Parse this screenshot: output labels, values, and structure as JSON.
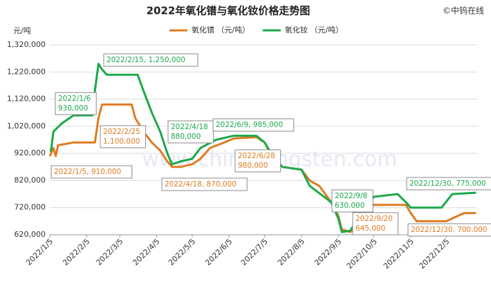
{
  "chart_data": {
    "type": "line",
    "title": "2022年氧化镨与氧化钕价格走势图",
    "source": "©中钨在线",
    "watermark": "www.chinatungsten.com",
    "y_label": "元/吨",
    "xlim": [
      "2022/1/5",
      "2022/12/31"
    ],
    "xticks": [
      "2022/1/5",
      "2022/2/5",
      "2022/3/5",
      "2022/4/5",
      "2022/5/5",
      "2022/6/5",
      "2022/7/5",
      "2022/8/5",
      "2022/9/5",
      "2022/10/5",
      "2022/11/5",
      "2022/12/5"
    ],
    "ylim": [
      620000,
      1320000
    ],
    "yticks": [
      {
        "value": 620000,
        "label": "620,000"
      },
      {
        "value": 720000,
        "label": "720,000"
      },
      {
        "value": 820000,
        "label": "820,000"
      },
      {
        "value": 920000,
        "label": "920,000"
      },
      {
        "value": 1020000,
        "label": "1,020,000"
      },
      {
        "value": 1120000,
        "label": "1,120,000"
      },
      {
        "value": 1220000,
        "label": "1,220,000"
      },
      {
        "value": 1320000,
        "label": "1,320,000"
      }
    ],
    "grid": true,
    "series": [
      {
        "name": "氧化镨 （元/吨）",
        "color": "#e07b20",
        "x": [
          "2022/1/5",
          "2022/1/8",
          "2022/1/10",
          "2022/1/12",
          "2022/1/25",
          "2022/2/12",
          "2022/2/15",
          "2022/2/18",
          "2022/3/15",
          "2022/3/18",
          "2022/3/25",
          "2022/4/1",
          "2022/4/8",
          "2022/4/14",
          "2022/4/18",
          "2022/4/25",
          "2022/5/5",
          "2022/5/12",
          "2022/5/20",
          "2022/6/1",
          "2022/6/9",
          "2022/6/28",
          "2022/7/5",
          "2022/7/12",
          "2022/7/20",
          "2022/8/5",
          "2022/8/12",
          "2022/8/20",
          "2022/8/30",
          "2022/9/5",
          "2022/9/8",
          "2022/9/15",
          "2022/9/20",
          "2022/9/25",
          "2022/10/5",
          "2022/11/1",
          "2022/11/5",
          "2022/11/10",
          "2022/12/5",
          "2022/12/15",
          "2022/12/20",
          "2022/12/30"
        ],
        "values": [
          910000,
          940000,
          910000,
          950000,
          960000,
          960000,
          1050000,
          1100000,
          1100000,
          1050000,
          1000000,
          960000,
          930000,
          890000,
          870000,
          870000,
          880000,
          900000,
          940000,
          960000,
          975000,
          980000,
          960000,
          900000,
          870000,
          860000,
          820000,
          800000,
          740000,
          690000,
          640000,
          630000,
          645000,
          700000,
          730000,
          730000,
          700000,
          670000,
          670000,
          690000,
          700000,
          700000
        ]
      },
      {
        "name": "氧化钕 （元/吨）",
        "color": "#1aa84a",
        "x": [
          "2022/1/5",
          "2022/1/6",
          "2022/1/8",
          "2022/1/15",
          "2022/1/25",
          "2022/2/10",
          "2022/2/12",
          "2022/2/15",
          "2022/2/18",
          "2022/2/22",
          "2022/3/20",
          "2022/3/25",
          "2022/4/1",
          "2022/4/8",
          "2022/4/14",
          "2022/4/18",
          "2022/4/25",
          "2022/5/5",
          "2022/5/12",
          "2022/5/25",
          "2022/6/9",
          "2022/6/28",
          "2022/7/5",
          "2022/7/12",
          "2022/7/20",
          "2022/8/5",
          "2022/8/12",
          "2022/8/30",
          "2022/9/5",
          "2022/9/8",
          "2022/9/15",
          "2022/9/25",
          "2022/10/5",
          "2022/10/25",
          "2022/11/1",
          "2022/11/5",
          "2022/12/1",
          "2022/12/10",
          "2022/12/30"
        ],
        "values": [
          930000,
          930000,
          1000000,
          1030000,
          1060000,
          1060000,
          1150000,
          1250000,
          1230000,
          1210000,
          1210000,
          1150000,
          1070000,
          1000000,
          920000,
          880000,
          890000,
          900000,
          940000,
          970000,
          985000,
          985000,
          960000,
          910000,
          870000,
          860000,
          800000,
          740000,
          680000,
          630000,
          635000,
          700000,
          760000,
          770000,
          740000,
          720000,
          720000,
          770000,
          775000
        ]
      }
    ],
    "annotations": [
      {
        "text": [
          "2022/1/6",
          "930,000"
        ],
        "color": "#1aa84a"
      },
      {
        "text": [
          "2022/2/15, 1,250,000"
        ],
        "color": "#1aa84a"
      },
      {
        "text": [
          "2022/4/18",
          "880,000"
        ],
        "color": "#1aa84a"
      },
      {
        "text": [
          "2022/6/9, 985,000"
        ],
        "color": "#1aa84a"
      },
      {
        "text": [
          "2022/9/8",
          "630,000"
        ],
        "color": "#1aa84a"
      },
      {
        "text": [
          "2022/12/30, 775,000"
        ],
        "color": "#1aa84a"
      },
      {
        "text": [
          "2022/1/5, 910,000"
        ],
        "color": "#e07b20"
      },
      {
        "text": [
          "2022/2/25",
          "1,100,000"
        ],
        "color": "#e07b20"
      },
      {
        "text": [
          "2022/4/18, 870,000"
        ],
        "color": "#e07b20"
      },
      {
        "text": [
          "2022/6/28",
          "980,000"
        ],
        "color": "#e07b20"
      },
      {
        "text": [
          "2022/9/20",
          "645,000"
        ],
        "color": "#e07b20"
      },
      {
        "text": [
          "2022/12/30, 700,000"
        ],
        "color": "#e07b20"
      }
    ]
  }
}
